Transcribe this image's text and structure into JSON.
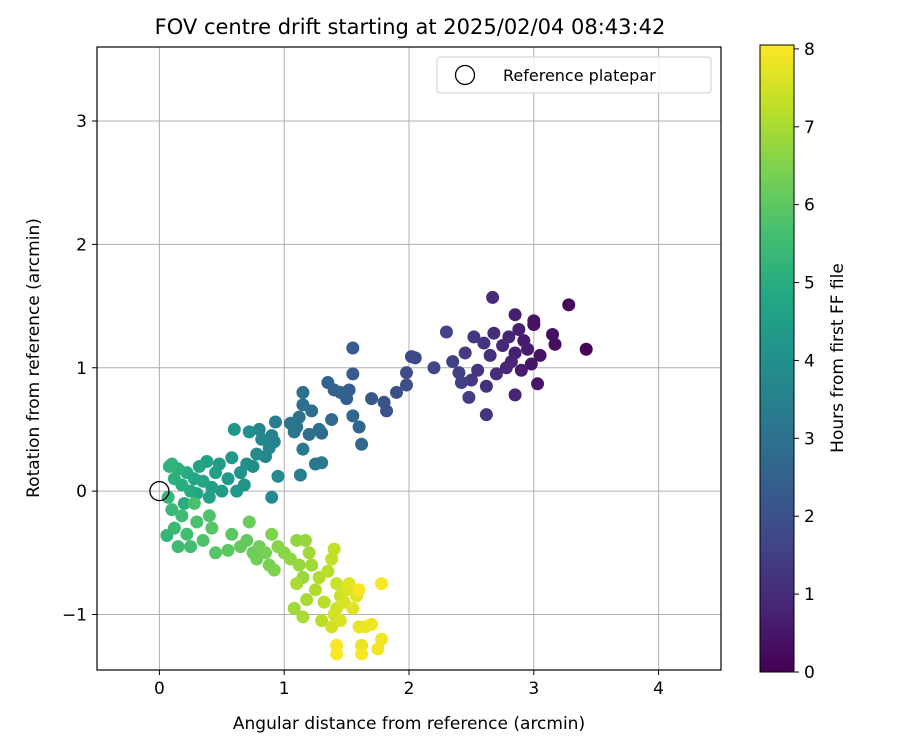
{
  "chart_data": {
    "type": "scatter",
    "title": "FOV centre drift starting at 2025/02/04 08:43:42",
    "xlabel": "Angular distance from reference (arcmin)",
    "ylabel": "Rotation from reference (arcmin)",
    "xlim": [
      -0.5,
      4.5
    ],
    "ylim": [
      -1.45,
      3.6
    ],
    "x_ticks": [
      "0",
      "1",
      "2",
      "3",
      "4"
    ],
    "y_ticks": [
      "−1",
      "0",
      "1",
      "2",
      "3"
    ],
    "x_tick_values": [
      0,
      1,
      2,
      3,
      4
    ],
    "y_tick_values": [
      -1,
      0,
      1,
      2,
      3
    ],
    "grid": true,
    "legend": {
      "position": "top-right",
      "entries": [
        {
          "label": "Reference platepar",
          "marker": "open-circle"
        }
      ]
    },
    "reference_point": {
      "x": 0,
      "y": 0
    },
    "colorbar": {
      "label": "Hours from first FF file",
      "range": [
        0,
        8.05
      ],
      "ticks": [
        "0",
        "1",
        "2",
        "3",
        "4",
        "5",
        "6",
        "7",
        "8"
      ],
      "tick_values": [
        0,
        1,
        2,
        3,
        4,
        5,
        6,
        7,
        8
      ],
      "colormap": "viridis"
    },
    "points": [
      [
        3.42,
        1.15,
        0.1
      ],
      [
        3.28,
        1.51,
        0.2
      ],
      [
        3.17,
        1.19,
        0.3
      ],
      [
        3.15,
        1.27,
        0.3
      ],
      [
        3.05,
        1.1,
        0.4
      ],
      [
        3.0,
        1.38,
        0.4
      ],
      [
        3.0,
        1.35,
        0.4
      ],
      [
        3.03,
        0.87,
        0.5
      ],
      [
        2.98,
        1.03,
        0.5
      ],
      [
        2.95,
        1.15,
        0.6
      ],
      [
        2.9,
        0.98,
        0.6
      ],
      [
        2.92,
        1.22,
        0.6
      ],
      [
        2.88,
        1.31,
        0.7
      ],
      [
        2.85,
        1.43,
        0.7
      ],
      [
        2.85,
        1.12,
        0.7
      ],
      [
        2.82,
        1.05,
        0.8
      ],
      [
        2.8,
        1.25,
        0.8
      ],
      [
        2.85,
        0.78,
        0.8
      ],
      [
        2.78,
        1.0,
        0.9
      ],
      [
        2.75,
        1.18,
        0.9
      ],
      [
        2.7,
        0.95,
        1.0
      ],
      [
        2.68,
        1.28,
        1.0
      ],
      [
        2.67,
        1.57,
        1.0
      ],
      [
        2.65,
        1.1,
        1.1
      ],
      [
        2.62,
        0.85,
        1.1
      ],
      [
        2.6,
        1.2,
        1.2
      ],
      [
        2.62,
        0.62,
        1.2
      ],
      [
        2.55,
        0.98,
        1.2
      ],
      [
        2.52,
        1.25,
        1.3
      ],
      [
        2.5,
        0.9,
        1.3
      ],
      [
        2.48,
        0.76,
        1.4
      ],
      [
        2.45,
        1.12,
        1.4
      ],
      [
        2.42,
        0.88,
        1.5
      ],
      [
        2.4,
        0.96,
        1.5
      ],
      [
        2.35,
        1.05,
        1.5
      ],
      [
        2.3,
        1.29,
        1.6
      ],
      [
        2.2,
        1.0,
        1.7
      ],
      [
        2.05,
        1.08,
        1.8
      ],
      [
        2.02,
        1.09,
        1.8
      ],
      [
        1.98,
        0.96,
        1.9
      ],
      [
        1.98,
        0.86,
        1.9
      ],
      [
        1.9,
        0.8,
        2.0
      ],
      [
        1.82,
        0.65,
        2.1
      ],
      [
        1.8,
        0.72,
        2.1
      ],
      [
        1.7,
        0.75,
        2.2
      ],
      [
        1.55,
        1.16,
        2.3
      ],
      [
        1.55,
        0.95,
        2.3
      ],
      [
        1.52,
        0.82,
        2.4
      ],
      [
        1.5,
        0.75,
        2.4
      ],
      [
        1.45,
        0.8,
        2.5
      ],
      [
        1.4,
        0.82,
        2.5
      ],
      [
        1.35,
        0.88,
        2.6
      ],
      [
        1.6,
        0.52,
        2.6
      ],
      [
        1.55,
        0.61,
        2.7
      ],
      [
        1.62,
        0.38,
        2.7
      ],
      [
        1.38,
        0.58,
        2.8
      ],
      [
        1.3,
        0.47,
        2.8
      ],
      [
        1.28,
        0.5,
        2.9
      ],
      [
        1.22,
        0.65,
        2.9
      ],
      [
        1.2,
        0.46,
        3.0
      ],
      [
        1.15,
        0.7,
        3.0
      ],
      [
        1.15,
        0.8,
        3.0
      ],
      [
        1.12,
        0.6,
        3.1
      ],
      [
        1.1,
        0.52,
        3.1
      ],
      [
        1.08,
        0.48,
        3.2
      ],
      [
        1.05,
        0.55,
        3.2
      ],
      [
        1.25,
        0.22,
        3.2
      ],
      [
        1.3,
        0.23,
        3.3
      ],
      [
        1.15,
        0.34,
        3.3
      ],
      [
        1.13,
        0.13,
        3.4
      ],
      [
        0.93,
        0.56,
        3.4
      ],
      [
        0.9,
        0.45,
        3.5
      ],
      [
        0.92,
        0.4,
        3.5
      ],
      [
        0.88,
        0.35,
        3.6
      ],
      [
        0.85,
        0.28,
        3.6
      ],
      [
        0.8,
        0.5,
        3.7
      ],
      [
        0.82,
        0.42,
        3.7
      ],
      [
        0.95,
        0.12,
        3.8
      ],
      [
        0.9,
        -0.05,
        3.8
      ],
      [
        0.78,
        0.3,
        3.9
      ],
      [
        0.75,
        0.2,
        3.9
      ],
      [
        0.72,
        0.48,
        4.0
      ],
      [
        0.7,
        0.22,
        4.0
      ],
      [
        0.68,
        0.05,
        4.1
      ],
      [
        0.65,
        0.15,
        4.1
      ],
      [
        0.62,
        0.0,
        4.2
      ],
      [
        0.6,
        0.5,
        4.2
      ],
      [
        0.58,
        0.27,
        4.3
      ],
      [
        0.55,
        0.1,
        4.3
      ],
      [
        0.5,
        0.0,
        4.4
      ],
      [
        0.48,
        0.22,
        4.4
      ],
      [
        0.45,
        0.15,
        4.5
      ],
      [
        0.42,
        0.03,
        4.5
      ],
      [
        0.4,
        -0.05,
        4.6
      ],
      [
        0.38,
        0.24,
        4.6
      ],
      [
        0.35,
        0.08,
        4.7
      ],
      [
        0.32,
        0.2,
        4.7
      ],
      [
        0.3,
        -0.02,
        4.8
      ],
      [
        0.28,
        0.1,
        4.8
      ],
      [
        0.25,
        0.0,
        4.9
      ],
      [
        0.22,
        0.15,
        4.9
      ],
      [
        0.2,
        -0.1,
        5.0
      ],
      [
        0.18,
        0.05,
        5.0
      ],
      [
        0.15,
        0.18,
        5.1
      ],
      [
        0.12,
        0.1,
        5.1
      ],
      [
        0.1,
        0.22,
        5.2
      ],
      [
        0.08,
        0.2,
        5.2
      ],
      [
        0.07,
        -0.05,
        5.3
      ],
      [
        0.06,
        -0.36,
        5.3
      ],
      [
        0.1,
        -0.15,
        5.4
      ],
      [
        0.12,
        -0.3,
        5.4
      ],
      [
        0.15,
        -0.45,
        5.5
      ],
      [
        0.18,
        -0.2,
        5.5
      ],
      [
        0.22,
        -0.35,
        5.6
      ],
      [
        0.25,
        -0.45,
        5.6
      ],
      [
        0.28,
        -0.1,
        5.7
      ],
      [
        0.3,
        -0.25,
        5.7
      ],
      [
        0.35,
        -0.4,
        5.8
      ],
      [
        0.4,
        -0.2,
        5.8
      ],
      [
        0.42,
        -0.3,
        5.9
      ],
      [
        0.45,
        -0.5,
        5.9
      ],
      [
        0.55,
        -0.48,
        6.0
      ],
      [
        0.58,
        -0.35,
        6.0
      ],
      [
        0.65,
        -0.45,
        6.1
      ],
      [
        0.7,
        -0.4,
        6.1
      ],
      [
        0.72,
        -0.25,
        6.2
      ],
      [
        0.75,
        -0.5,
        6.2
      ],
      [
        0.78,
        -0.55,
        6.3
      ],
      [
        0.8,
        -0.45,
        6.3
      ],
      [
        0.85,
        -0.5,
        6.4
      ],
      [
        0.88,
        -0.6,
        6.4
      ],
      [
        0.9,
        -0.35,
        6.5
      ],
      [
        0.92,
        -0.64,
        6.5
      ],
      [
        0.95,
        -0.45,
        6.6
      ],
      [
        1.0,
        -0.5,
        6.6
      ],
      [
        1.05,
        -0.55,
        6.7
      ],
      [
        1.1,
        -0.4,
        6.7
      ],
      [
        1.12,
        -0.6,
        6.8
      ],
      [
        1.15,
        -0.7,
        6.8
      ],
      [
        1.17,
        -0.4,
        6.8
      ],
      [
        1.2,
        -0.5,
        6.9
      ],
      [
        1.22,
        -0.6,
        6.9
      ],
      [
        1.08,
        -0.95,
        6.9
      ],
      [
        1.1,
        -0.75,
        7.0
      ],
      [
        1.15,
        -1.02,
        7.0
      ],
      [
        1.18,
        -0.88,
        7.0
      ],
      [
        1.25,
        -0.8,
        7.1
      ],
      [
        1.28,
        -0.7,
        7.1
      ],
      [
        1.3,
        -1.05,
        7.2
      ],
      [
        1.32,
        -0.9,
        7.2
      ],
      [
        1.35,
        -0.65,
        7.2
      ],
      [
        1.38,
        -0.55,
        7.3
      ],
      [
        1.4,
        -0.47,
        7.3
      ],
      [
        1.42,
        -0.75,
        7.4
      ],
      [
        1.45,
        -0.85,
        7.4
      ],
      [
        1.38,
        -1.1,
        7.5
      ],
      [
        1.4,
        -1.0,
        7.5
      ],
      [
        1.42,
        -0.95,
        7.5
      ],
      [
        1.45,
        -1.05,
        7.6
      ],
      [
        1.48,
        -0.9,
        7.6
      ],
      [
        1.5,
        -0.8,
        7.6
      ],
      [
        1.52,
        -0.75,
        7.7
      ],
      [
        1.55,
        -0.95,
        7.7
      ],
      [
        1.58,
        -0.85,
        7.7
      ],
      [
        1.6,
        -1.1,
        7.8
      ],
      [
        1.62,
        -1.25,
        7.8
      ],
      [
        1.65,
        -1.1,
        7.8
      ],
      [
        1.7,
        -1.08,
        7.9
      ],
      [
        1.75,
        -1.28,
        7.9
      ],
      [
        1.78,
        -1.2,
        7.9
      ],
      [
        1.78,
        -0.75,
        8.0
      ],
      [
        1.42,
        -1.25,
        8.0
      ],
      [
        1.42,
        -1.32,
        8.0
      ],
      [
        1.62,
        -1.32,
        8.0
      ],
      [
        1.6,
        -0.8,
        8.0
      ]
    ]
  }
}
